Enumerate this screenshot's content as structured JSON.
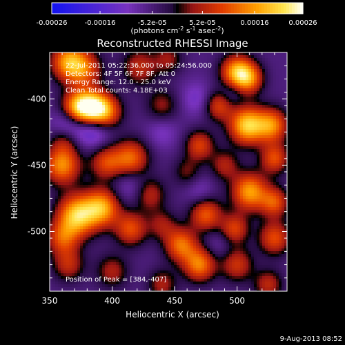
{
  "chart_data": {
    "type": "heatmap",
    "title": "Reconstructed RHESSI Image",
    "xlabel": "Heliocentric X (arcsec)",
    "ylabel": "Heliocentric Y (arcsec)",
    "xlim": [
      350,
      540
    ],
    "ylim": [
      -545,
      -365
    ],
    "x_ticks": [
      350,
      400,
      450,
      500
    ],
    "x_tick_labels": [
      "350",
      "400",
      "450",
      "500"
    ],
    "y_ticks": [
      -400,
      -450,
      -500
    ],
    "y_tick_labels": [
      "-400",
      "-450",
      "-500"
    ],
    "colorbar": {
      "ticks": [
        "-0.00026",
        "-0.00016",
        "-5.2e-05",
        "5.2e-05",
        "0.00016",
        "0.00026"
      ],
      "range": [
        -0.00026,
        0.00026
      ],
      "units": "(photons cm",
      "units_sup1": "-2",
      "units_mid": " s",
      "units_sup2": "-1",
      "units_end": " asec",
      "units_sup3": "-2",
      "units_close": ")"
    },
    "annotations": {
      "line1": "22-Jul-2011 05:22:36.000 to 05:24:56.000",
      "line2": "Detectors: 4F 5F 6F 7F 8F, Att 0",
      "line3": "Energy Range: 12.0 - 25.0 keV",
      "line4": "Clean     Total counts: 4.18E+03",
      "peak": "Position of Peak = [384,-407]"
    },
    "blobs": [
      {
        "x": 384,
        "y": -407,
        "v": 1.0,
        "s": 9
      },
      {
        "x": 372,
        "y": -407,
        "v": 0.85,
        "s": 9
      },
      {
        "x": 395,
        "y": -410,
        "v": 0.7,
        "s": 9
      },
      {
        "x": 365,
        "y": -372,
        "v": 0.8,
        "s": 10
      },
      {
        "x": 378,
        "y": -378,
        "v": 0.55,
        "s": 10
      },
      {
        "x": 422,
        "y": -376,
        "v": 0.45,
        "s": 10
      },
      {
        "x": 440,
        "y": -405,
        "v": 0.35,
        "s": 9
      },
      {
        "x": 445,
        "y": -370,
        "v": 0.35,
        "s": 8
      },
      {
        "x": 500,
        "y": -380,
        "v": 0.9,
        "s": 9
      },
      {
        "x": 510,
        "y": -385,
        "v": 0.6,
        "s": 8
      },
      {
        "x": 485,
        "y": -405,
        "v": 0.55,
        "s": 8
      },
      {
        "x": 508,
        "y": -420,
        "v": 1.0,
        "s": 10
      },
      {
        "x": 528,
        "y": -420,
        "v": 0.75,
        "s": 9
      },
      {
        "x": 530,
        "y": -445,
        "v": 0.6,
        "s": 8
      },
      {
        "x": 470,
        "y": -435,
        "v": 0.55,
        "s": 8
      },
      {
        "x": 490,
        "y": -450,
        "v": 0.4,
        "s": 8
      },
      {
        "x": 415,
        "y": -445,
        "v": 0.7,
        "s": 10
      },
      {
        "x": 395,
        "y": -448,
        "v": 0.55,
        "s": 9
      },
      {
        "x": 360,
        "y": -450,
        "v": 0.8,
        "s": 10
      },
      {
        "x": 362,
        "y": -430,
        "v": 0.4,
        "s": 8
      },
      {
        "x": 510,
        "y": -470,
        "v": 0.85,
        "s": 10
      },
      {
        "x": 530,
        "y": -478,
        "v": 0.6,
        "s": 8
      },
      {
        "x": 475,
        "y": -487,
        "v": 0.65,
        "s": 9
      },
      {
        "x": 498,
        "y": -498,
        "v": 0.55,
        "s": 8
      },
      {
        "x": 460,
        "y": -455,
        "v": 0.3,
        "s": 8
      },
      {
        "x": 430,
        "y": -472,
        "v": 0.45,
        "s": 9
      },
      {
        "x": 372,
        "y": -488,
        "v": 1.0,
        "s": 11
      },
      {
        "x": 392,
        "y": -482,
        "v": 0.85,
        "s": 10
      },
      {
        "x": 415,
        "y": -498,
        "v": 0.6,
        "s": 9
      },
      {
        "x": 360,
        "y": -505,
        "v": 0.55,
        "s": 9
      },
      {
        "x": 530,
        "y": -505,
        "v": 0.6,
        "s": 9
      },
      {
        "x": 365,
        "y": -525,
        "v": 0.45,
        "s": 9
      },
      {
        "x": 400,
        "y": -530,
        "v": 0.4,
        "s": 9
      },
      {
        "x": 455,
        "y": -510,
        "v": 0.7,
        "s": 9
      },
      {
        "x": 470,
        "y": -525,
        "v": 0.75,
        "s": 9
      },
      {
        "x": 440,
        "y": -540,
        "v": 0.4,
        "s": 8
      },
      {
        "x": 500,
        "y": -525,
        "v": 0.5,
        "s": 9
      },
      {
        "x": 525,
        "y": -540,
        "v": 0.45,
        "s": 8
      },
      {
        "x": 440,
        "y": -495,
        "v": 0.35,
        "s": 8
      },
      {
        "x": 468,
        "y": -400,
        "v": -0.25,
        "s": 9
      },
      {
        "x": 495,
        "y": -395,
        "v": -0.2,
        "s": 7
      },
      {
        "x": 385,
        "y": -422,
        "v": -0.45,
        "s": 10
      },
      {
        "x": 365,
        "y": -420,
        "v": -0.45,
        "s": 9
      },
      {
        "x": 440,
        "y": -425,
        "v": -0.2,
        "s": 9
      },
      {
        "x": 415,
        "y": -465,
        "v": -0.25,
        "s": 10
      },
      {
        "x": 470,
        "y": -470,
        "v": -0.2,
        "s": 8
      },
      {
        "x": 485,
        "y": -510,
        "v": -0.15,
        "s": 8
      }
    ]
  },
  "footer": {
    "timestamp": "9-Aug-2013 08:52"
  }
}
